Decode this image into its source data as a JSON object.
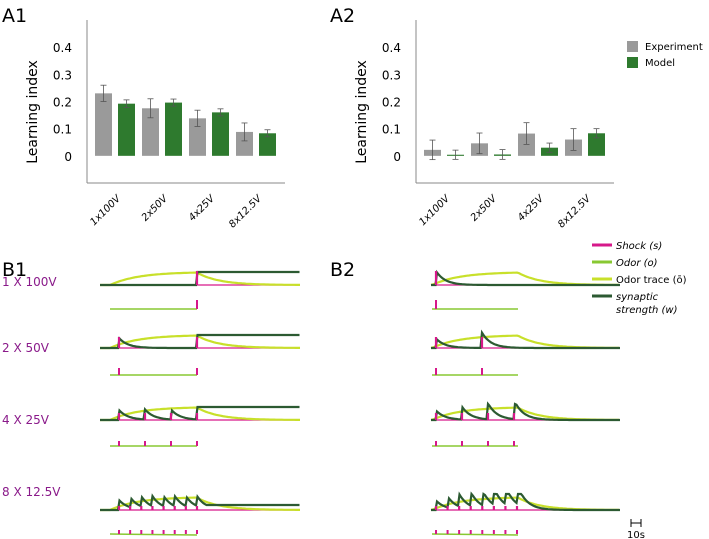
{
  "colors": {
    "experiment": "#9a9a9a",
    "model": "#2e7a2e",
    "shock": "#d6188a",
    "odor": "#88c832",
    "odor_trace": "#c8e02a",
    "synaptic": "#2c5a32",
    "axis": "#8a8a8a",
    "row_label": "#8a1a8a"
  },
  "chart_data": [
    {
      "id": "A1",
      "type": "bar",
      "panel_label": "A1",
      "ylabel": "Learning index",
      "ylim": [
        -0.1,
        0.5
      ],
      "yticks": [
        "0.4",
        "0.3",
        "0.2",
        "0.1",
        "0"
      ],
      "ytick_values": [
        0.4,
        0.3,
        0.2,
        0.1,
        0
      ],
      "categories": [
        "1x100V",
        "2x50V",
        "4x25V",
        "8x12.5V"
      ],
      "series": [
        {
          "name": "Experiment",
          "values": [
            0.23,
            0.175,
            0.138,
            0.088
          ],
          "errors": [
            0.03,
            0.035,
            0.03,
            0.033
          ]
        },
        {
          "name": "Model",
          "values": [
            0.192,
            0.196,
            0.16,
            0.083
          ],
          "errors": [
            0.014,
            0.013,
            0.013,
            0.013
          ]
        }
      ]
    },
    {
      "id": "A2",
      "type": "bar",
      "panel_label": "A2",
      "ylabel": "Learning index",
      "ylim": [
        -0.1,
        0.5
      ],
      "yticks": [
        "0.4",
        "0.3",
        "0.2",
        "0.1",
        "0"
      ],
      "ytick_values": [
        0.4,
        0.3,
        0.2,
        0.1,
        0
      ],
      "categories": [
        "1x100V",
        "2x50V",
        "4x25V",
        "8x12.5V"
      ],
      "series": [
        {
          "name": "Experiment",
          "values": [
            0.022,
            0.046,
            0.082,
            0.06
          ],
          "errors": [
            0.036,
            0.038,
            0.04,
            0.04
          ]
        },
        {
          "name": "Model",
          "values": [
            0.004,
            0.005,
            0.03,
            0.083
          ],
          "errors": [
            0.017,
            0.018,
            0.017,
            0.017
          ]
        }
      ],
      "legend": [
        "Experiment",
        "Model"
      ]
    },
    {
      "id": "B1",
      "type": "line",
      "panel_label": "B1",
      "rows": [
        {
          "label": "1 X 100V",
          "pulses": 1
        },
        {
          "label": "2 X 50V",
          "pulses": 2
        },
        {
          "label": "4 X 25V",
          "pulses": 4
        },
        {
          "label": "8 X 12.5V",
          "pulses": 8
        }
      ]
    },
    {
      "id": "B2",
      "type": "line",
      "panel_label": "B2",
      "rows": [
        {
          "pulses": 1
        },
        {
          "pulses": 2
        },
        {
          "pulses": 4
        },
        {
          "pulses": 8
        }
      ]
    }
  ],
  "trace_legend": {
    "shock": "Shock (s)",
    "odor": "Odor (o)",
    "odor_trace": "Odor trace (ō)",
    "synaptic_line1": "synaptic",
    "synaptic_line2": "strength (w)"
  },
  "scalebar_label": "10s"
}
